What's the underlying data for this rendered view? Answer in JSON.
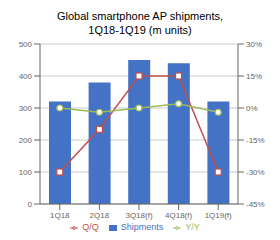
{
  "chart_data": {
    "type": "bar",
    "title": "Global smartphone AP shipments,\n1Q18-1Q19 (m units)",
    "categories": [
      "1Q18",
      "2Q18",
      "3Q18(f)",
      "4Q18(f)",
      "1Q19(f)"
    ],
    "series": [
      {
        "name": "Shipments",
        "type": "bar",
        "color": "#4472c4",
        "values": [
          320,
          380,
          450,
          440,
          320
        ]
      },
      {
        "name": "Q/Q",
        "type": "line",
        "axis": "y2",
        "color": "#c0504d",
        "marker": "square",
        "values": [
          -30,
          -10,
          15,
          15,
          -30
        ]
      },
      {
        "name": "Y/Y",
        "type": "line",
        "axis": "y2",
        "color": "#9bbb59",
        "marker": "circle",
        "values": [
          0,
          -2,
          0,
          2,
          -2
        ]
      }
    ],
    "ylim": [
      0,
      500
    ],
    "yticks": [
      0,
      100,
      200,
      300,
      400,
      500
    ],
    "y2lim": [
      -45,
      30
    ],
    "y2ticks": [
      {
        "value": -45,
        "label": "-45%"
      },
      {
        "value": -30,
        "label": "-30%"
      },
      {
        "value": -15,
        "label": "-15%"
      },
      {
        "value": 0,
        "label": "0%"
      },
      {
        "value": 15,
        "label": "15%"
      },
      {
        "value": 30,
        "label": "30%"
      }
    ],
    "grid": true,
    "legend": "bottom"
  }
}
